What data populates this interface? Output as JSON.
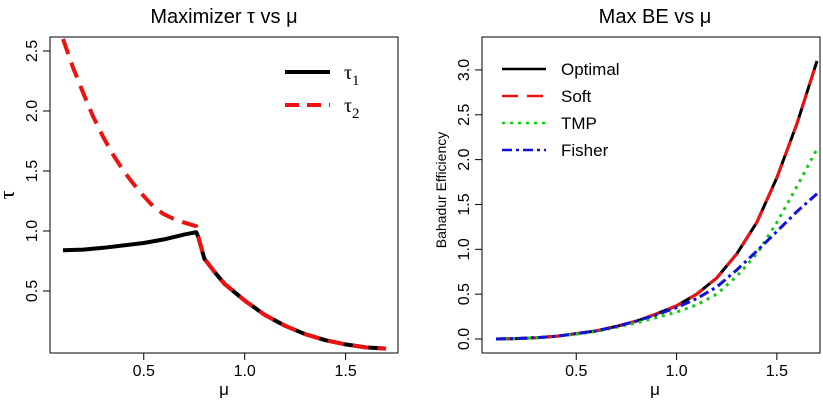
{
  "chart_data": [
    {
      "type": "line",
      "title": "Maximizer τ vs μ",
      "xlabel": "μ",
      "ylabel": "τ",
      "xlim": [
        0.1,
        1.7
      ],
      "ylim": [
        0.0,
        2.6
      ],
      "x_ticks": [
        0.5,
        1.0,
        1.5
      ],
      "y_ticks": [
        0.5,
        1.0,
        1.5,
        2.0,
        2.5
      ],
      "legend_position": "top-right",
      "series": [
        {
          "name": "τ1",
          "color": "#000000",
          "style": "solid",
          "x": [
            0.1,
            0.2,
            0.3,
            0.4,
            0.5,
            0.6,
            0.7,
            0.76,
            0.77,
            0.8,
            0.85,
            0.9,
            1.0,
            1.1,
            1.2,
            1.3,
            1.4,
            1.5,
            1.6,
            1.7
          ],
          "y": [
            0.84,
            0.845,
            0.86,
            0.88,
            0.9,
            0.93,
            0.97,
            0.99,
            0.95,
            0.77,
            0.66,
            0.56,
            0.42,
            0.3,
            0.21,
            0.14,
            0.09,
            0.055,
            0.03,
            0.02
          ]
        },
        {
          "name": "τ2",
          "color": "#ee1111",
          "style": "dashed",
          "x": [
            0.1,
            0.15,
            0.2,
            0.25,
            0.3,
            0.35,
            0.4,
            0.45,
            0.5,
            0.55,
            0.6,
            0.65,
            0.7,
            0.76,
            0.77,
            0.8,
            0.85,
            0.9,
            1.0,
            1.1,
            1.2,
            1.3,
            1.4,
            1.5,
            1.6,
            1.7
          ],
          "y": [
            2.6,
            2.36,
            2.15,
            1.95,
            1.78,
            1.63,
            1.5,
            1.39,
            1.29,
            1.2,
            1.14,
            1.1,
            1.07,
            1.04,
            0.95,
            0.77,
            0.66,
            0.56,
            0.42,
            0.3,
            0.21,
            0.14,
            0.09,
            0.055,
            0.03,
            0.02
          ]
        }
      ]
    },
    {
      "type": "line",
      "title": "Max BE vs μ",
      "xlabel": "μ",
      "ylabel": "Bahadur Efficiency",
      "xlim": [
        0.1,
        1.7
      ],
      "ylim": [
        0.0,
        3.2
      ],
      "x_ticks": [
        0.5,
        1.0,
        1.5
      ],
      "y_ticks": [
        0.0,
        0.5,
        1.0,
        1.5,
        2.0,
        2.5,
        3.0
      ],
      "legend_position": "top-left",
      "series": [
        {
          "name": "Optimal",
          "color": "#000000",
          "style": "solid",
          "x": [
            0.1,
            0.2,
            0.3,
            0.4,
            0.5,
            0.6,
            0.7,
            0.8,
            0.9,
            1.0,
            1.1,
            1.2,
            1.3,
            1.4,
            1.5,
            1.6,
            1.7
          ],
          "y": [
            0.0,
            0.005,
            0.015,
            0.03,
            0.06,
            0.09,
            0.14,
            0.2,
            0.28,
            0.37,
            0.5,
            0.68,
            0.95,
            1.3,
            1.8,
            2.4,
            3.1
          ]
        },
        {
          "name": "Soft",
          "color": "#ee1111",
          "style": "dashed",
          "x": [
            0.1,
            0.2,
            0.3,
            0.4,
            0.5,
            0.6,
            0.7,
            0.8,
            0.9,
            1.0,
            1.1,
            1.2,
            1.3,
            1.4,
            1.5,
            1.6,
            1.7
          ],
          "y": [
            0.0,
            0.005,
            0.015,
            0.03,
            0.06,
            0.09,
            0.14,
            0.2,
            0.28,
            0.37,
            0.5,
            0.68,
            0.95,
            1.3,
            1.8,
            2.4,
            3.1
          ]
        },
        {
          "name": "TMP",
          "color": "#11cc11",
          "style": "dotted",
          "x": [
            0.1,
            0.2,
            0.3,
            0.4,
            0.5,
            0.6,
            0.7,
            0.8,
            0.9,
            1.0,
            1.1,
            1.2,
            1.3,
            1.4,
            1.5,
            1.6,
            1.7
          ],
          "y": [
            0.0,
            0.005,
            0.015,
            0.03,
            0.055,
            0.085,
            0.13,
            0.18,
            0.24,
            0.3,
            0.38,
            0.5,
            0.7,
            0.95,
            1.3,
            1.7,
            2.12
          ]
        },
        {
          "name": "Fisher",
          "color": "#1111dd",
          "style": "dashdot",
          "x": [
            0.1,
            0.2,
            0.3,
            0.4,
            0.5,
            0.6,
            0.7,
            0.8,
            0.9,
            1.0,
            1.1,
            1.2,
            1.3,
            1.4,
            1.5,
            1.6,
            1.7
          ],
          "y": [
            0.0,
            0.005,
            0.015,
            0.03,
            0.06,
            0.09,
            0.14,
            0.2,
            0.27,
            0.35,
            0.45,
            0.58,
            0.77,
            0.98,
            1.2,
            1.42,
            1.62
          ]
        }
      ]
    }
  ]
}
